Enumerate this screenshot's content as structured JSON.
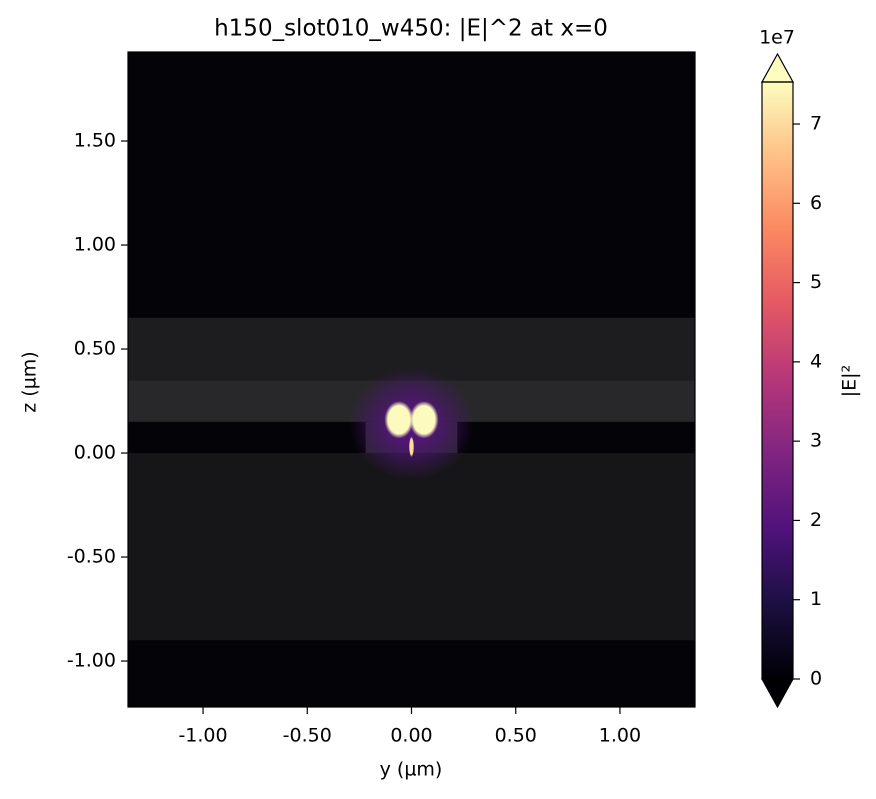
{
  "chart_data": {
    "type": "heatmap",
    "title": "h150_slot010_w450: |E|^2 at x=0",
    "xlabel": "y (µm)",
    "ylabel": "z (µm)",
    "xlim": [
      -1.36,
      1.36
    ],
    "ylim": [
      -1.221,
      1.928
    ],
    "xticks": [
      {
        "value": -1,
        "label": "-1.00"
      },
      {
        "value": -0.5,
        "label": "-0.50"
      },
      {
        "value": 0,
        "label": "0.00"
      },
      {
        "value": 0.5,
        "label": "0.50"
      },
      {
        "value": 1,
        "label": "1.00"
      }
    ],
    "yticks": [
      {
        "value": -1,
        "label": "-1.00"
      },
      {
        "value": -0.5,
        "label": "-0.50"
      },
      {
        "value": 0,
        "label": "0.00"
      },
      {
        "value": 0.5,
        "label": "0.50"
      },
      {
        "value": 1,
        "label": "1.00"
      },
      {
        "value": 1.5,
        "label": "1.50"
      }
    ],
    "background": "#040307",
    "structure": [
      {
        "y": [
          -1.36,
          1.36
        ],
        "z": [
          -0.9,
          0.0
        ],
        "color": "#161618"
      },
      {
        "y": [
          -1.36,
          1.36
        ],
        "z": [
          0.35,
          0.65
        ],
        "color": "#1d1d20"
      },
      {
        "y": [
          -1.36,
          1.36
        ],
        "z": [
          0.15,
          0.35
        ],
        "color": "#28282b"
      },
      {
        "y": [
          -0.22,
          0.22
        ],
        "z": [
          0.0,
          0.15
        ],
        "color": "#28282b"
      }
    ],
    "field": [
      {
        "y": 0.0,
        "z": 0.14,
        "ry": 0.3,
        "rz": 0.27,
        "value": 2.0
      },
      {
        "y": -0.06,
        "z": 0.16,
        "ry": 0.07,
        "rz": 0.09,
        "value": 7.5
      },
      {
        "y": 0.06,
        "z": 0.16,
        "ry": 0.07,
        "rz": 0.09,
        "value": 7.5
      },
      {
        "y": 0.0,
        "z": 0.03,
        "ry": 0.012,
        "rz": 0.05,
        "value": 7.0
      }
    ],
    "colormap": "magma",
    "colorbar": {
      "label": "|E|²",
      "scale_label": "1e7",
      "clim": [
        0,
        7.53
      ],
      "ticks": [
        0,
        1,
        2,
        3,
        4,
        5,
        6,
        7
      ],
      "extend": "both"
    }
  }
}
